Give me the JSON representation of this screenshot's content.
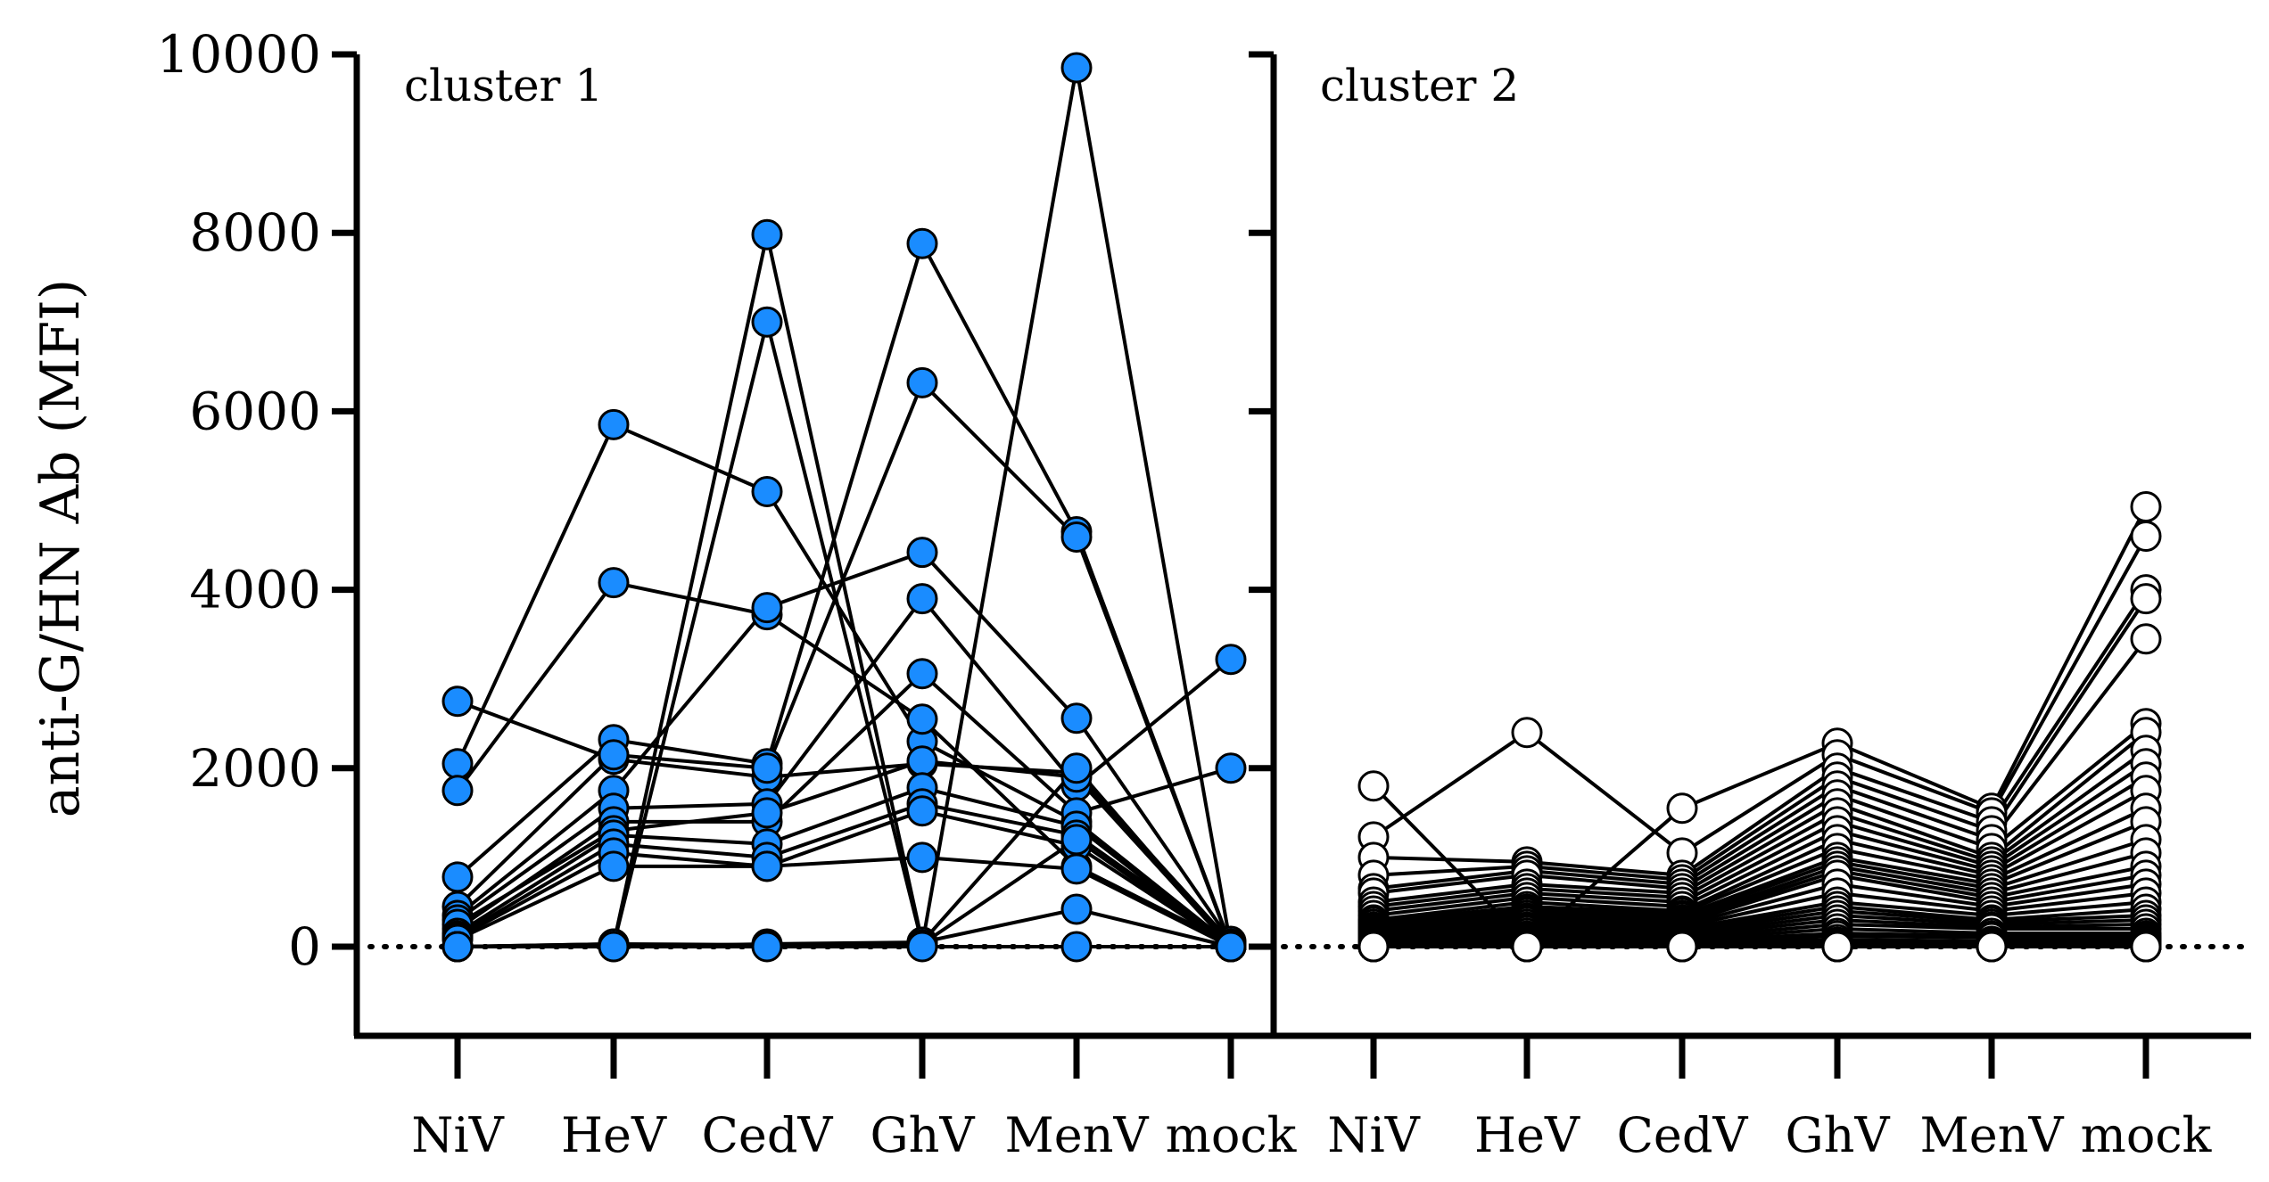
{
  "chart_data": {
    "type": "line",
    "ylabel": "anti-G/HN Ab (MFI)",
    "ylim": [
      -1000,
      10000
    ],
    "yticks": [
      "10000",
      "8000",
      "6000",
      "4000",
      "2000",
      "0"
    ],
    "yticks_values": [
      10000,
      8000,
      6000,
      4000,
      2000,
      0
    ],
    "reference_line": 0,
    "marker_fill": "#1a8cff",
    "panels": [
      {
        "label": "cluster 1",
        "categories": [
          "NiV",
          "HeV",
          "CedV",
          "GhV",
          "MenV",
          "mock"
        ],
        "marker": "filled",
        "series": [
          [
            2750,
            2100,
            1900,
            2050,
            1950,
            50
          ],
          [
            2050,
            5850,
            5100,
            2300,
            1400,
            20
          ],
          [
            1750,
            4080,
            3720,
            2550,
            900,
            30
          ],
          [
            780,
            2320,
            2050,
            7880,
            4650,
            10
          ],
          [
            450,
            2150,
            2000,
            6320,
            4590,
            0
          ],
          [
            350,
            1750,
            3800,
            4420,
            2560,
            60
          ],
          [
            300,
            1550,
            1600,
            3900,
            1800,
            3220
          ],
          [
            200,
            1400,
            1400,
            3060,
            1500,
            2000
          ],
          [
            250,
            1300,
            1500,
            2080,
            1900,
            0
          ],
          [
            150,
            1250,
            1150,
            1780,
            1350,
            0
          ],
          [
            120,
            1150,
            1000,
            1600,
            1250,
            30
          ],
          [
            100,
            1050,
            900,
            1520,
            1130,
            0
          ],
          [
            80,
            900,
            900,
            1000,
            870,
            0
          ],
          [
            0,
            30,
            7980,
            50,
            2000,
            0
          ],
          [
            0,
            20,
            7000,
            30,
            1200,
            0
          ],
          [
            0,
            0,
            30,
            50,
            420,
            0
          ],
          [
            0,
            30,
            20,
            20,
            9850,
            0
          ],
          [
            0,
            0,
            0,
            0,
            0,
            0
          ]
        ]
      },
      {
        "label": "cluster 2",
        "categories": [
          "NiV",
          "HeV",
          "CedV",
          "GhV",
          "MenV",
          "mock"
        ],
        "marker": "open",
        "series": [
          [
            1800,
            50,
            1550,
            2280,
            1550,
            4930
          ],
          [
            1230,
            2400,
            1050,
            2150,
            1500,
            4600
          ],
          [
            1000,
            950,
            800,
            2000,
            1400,
            4000
          ],
          [
            800,
            900,
            750,
            1900,
            1300,
            3900
          ],
          [
            650,
            850,
            700,
            1800,
            1200,
            3450
          ],
          [
            600,
            800,
            650,
            1700,
            1100,
            2500
          ],
          [
            500,
            700,
            600,
            1600,
            1000,
            2400
          ],
          [
            450,
            650,
            550,
            1500,
            950,
            2200
          ],
          [
            400,
            600,
            500,
            1400,
            900,
            2050
          ],
          [
            350,
            550,
            450,
            1300,
            850,
            1900
          ],
          [
            300,
            500,
            400,
            1200,
            800,
            1750
          ],
          [
            280,
            450,
            380,
            1100,
            750,
            1550
          ],
          [
            250,
            420,
            350,
            1000,
            700,
            1400
          ],
          [
            220,
            400,
            330,
            950,
            650,
            1200
          ],
          [
            200,
            380,
            300,
            900,
            600,
            1050
          ],
          [
            180,
            350,
            280,
            850,
            550,
            900
          ],
          [
            160,
            320,
            260,
            800,
            500,
            800
          ],
          [
            140,
            300,
            240,
            700,
            450,
            700
          ],
          [
            120,
            280,
            220,
            600,
            400,
            600
          ],
          [
            100,
            250,
            200,
            500,
            350,
            500
          ],
          [
            90,
            220,
            180,
            450,
            300,
            420
          ],
          [
            80,
            200,
            160,
            400,
            280,
            350
          ],
          [
            70,
            180,
            140,
            350,
            250,
            300
          ],
          [
            60,
            150,
            120,
            300,
            220,
            250
          ],
          [
            50,
            120,
            100,
            250,
            200,
            200
          ],
          [
            40,
            100,
            80,
            200,
            150,
            150
          ],
          [
            30,
            80,
            60,
            150,
            120,
            120
          ],
          [
            20,
            60,
            40,
            120,
            100,
            100
          ],
          [
            10,
            40,
            20,
            80,
            60,
            80
          ],
          [
            0,
            20,
            10,
            50,
            40,
            60
          ],
          [
            0,
            10,
            0,
            30,
            20,
            40
          ],
          [
            0,
            0,
            0,
            10,
            10,
            20
          ],
          [
            0,
            0,
            0,
            0,
            0,
            0
          ],
          [
            0,
            0,
            0,
            0,
            0,
            0
          ],
          [
            0,
            0,
            0,
            0,
            0,
            0
          ],
          [
            0,
            0,
            0,
            0,
            0,
            0
          ],
          [
            0,
            0,
            0,
            0,
            0,
            0
          ],
          [
            0,
            0,
            0,
            0,
            0,
            0
          ],
          [
            0,
            0,
            0,
            0,
            0,
            0
          ],
          [
            0,
            0,
            0,
            0,
            0,
            0
          ]
        ]
      }
    ]
  }
}
